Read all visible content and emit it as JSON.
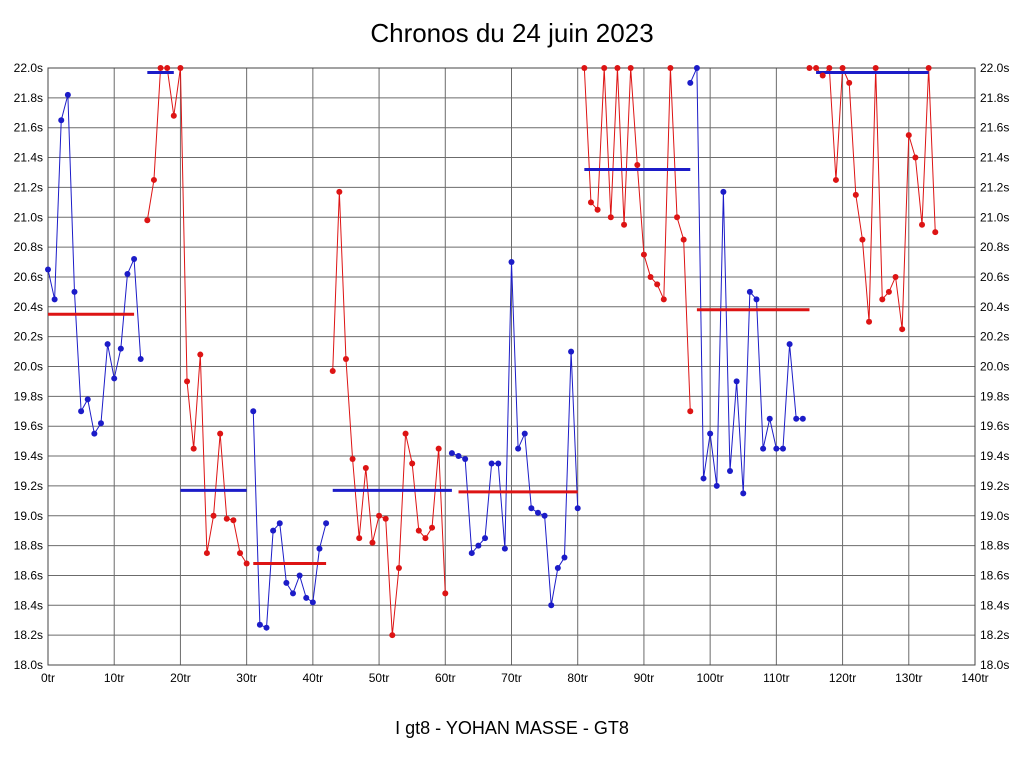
{
  "chart_data": {
    "type": "line",
    "title": "Chronos du 24 juin 2023",
    "subtitle": "I gt8 - YOHAN MASSE - GT8",
    "xlabel": "",
    "ylabel": "",
    "xlim": [
      0,
      140
    ],
    "ylim": [
      18.0,
      22.0
    ],
    "grid": true,
    "grid_color": "#6b6b6b",
    "border_color": "#444444",
    "x_ticks": [
      0,
      10,
      20,
      30,
      40,
      50,
      60,
      70,
      80,
      90,
      100,
      110,
      120,
      130,
      140
    ],
    "x_tick_labels": [
      "0tr",
      "10tr",
      "20tr",
      "30tr",
      "40tr",
      "50tr",
      "60tr",
      "70tr",
      "80tr",
      "90tr",
      "100tr",
      "110tr",
      "120tr",
      "130tr",
      "140tr"
    ],
    "y_ticks": [
      22.0,
      21.8,
      21.6,
      21.4,
      21.2,
      21.0,
      20.8,
      20.6,
      20.4,
      20.2,
      20.0,
      19.8,
      19.6,
      19.4,
      19.2,
      19.0,
      18.8,
      18.6,
      18.4,
      18.2,
      18.0
    ],
    "y_tick_labels": [
      "22.0s",
      "21.8s",
      "21.6s",
      "21.4s",
      "21.2s",
      "21.0s",
      "20.8s",
      "20.6s",
      "20.4s",
      "20.2s",
      "20.0s",
      "19.8s",
      "19.6s",
      "19.4s",
      "19.2s",
      "19.0s",
      "18.8s",
      "18.6s",
      "18.4s",
      "18.2s",
      "18.0s"
    ],
    "colors": {
      "blue": "#1c1cc8",
      "red": "#dd1414"
    },
    "series": [
      {
        "name": "driver-blue",
        "color_key": "blue",
        "segments": [
          [
            [
              0,
              20.65
            ],
            [
              1,
              20.45
            ],
            [
              2,
              21.65
            ],
            [
              3,
              21.82
            ],
            [
              4,
              20.5
            ],
            [
              5,
              19.7
            ],
            [
              6,
              19.78
            ],
            [
              7,
              19.55
            ],
            [
              8,
              19.62
            ],
            [
              9,
              20.15
            ],
            [
              10,
              19.92
            ],
            [
              11,
              20.12
            ],
            [
              12,
              20.62
            ],
            [
              13,
              20.72
            ],
            [
              14,
              20.05
            ]
          ],
          [
            [
              31,
              19.7
            ],
            [
              32,
              18.27
            ],
            [
              33,
              18.25
            ],
            [
              34,
              18.9
            ],
            [
              35,
              18.95
            ],
            [
              36,
              18.55
            ],
            [
              37,
              18.48
            ],
            [
              38,
              18.6
            ],
            [
              39,
              18.45
            ],
            [
              40,
              18.42
            ],
            [
              41,
              18.78
            ],
            [
              42,
              18.95
            ]
          ],
          [
            [
              61,
              19.42
            ],
            [
              62,
              19.4
            ],
            [
              63,
              19.38
            ],
            [
              64,
              18.75
            ],
            [
              65,
              18.8
            ],
            [
              66,
              18.85
            ],
            [
              67,
              19.35
            ],
            [
              68,
              19.35
            ],
            [
              69,
              18.78
            ],
            [
              70,
              20.7
            ],
            [
              71,
              19.45
            ],
            [
              72,
              19.55
            ],
            [
              73,
              19.05
            ],
            [
              74,
              19.02
            ],
            [
              75,
              19.0
            ],
            [
              76,
              18.4
            ],
            [
              77,
              18.65
            ],
            [
              78,
              18.72
            ],
            [
              79,
              20.1
            ],
            [
              80,
              19.05
            ]
          ],
          [
            [
              97,
              21.9
            ],
            [
              98,
              22.0
            ],
            [
              99,
              19.25
            ],
            [
              100,
              19.55
            ],
            [
              101,
              19.2
            ],
            [
              102,
              21.17
            ],
            [
              103,
              19.3
            ],
            [
              104,
              19.9
            ],
            [
              105,
              19.15
            ],
            [
              106,
              20.5
            ],
            [
              107,
              20.45
            ],
            [
              108,
              19.45
            ],
            [
              109,
              19.65
            ],
            [
              110,
              19.45
            ],
            [
              111,
              19.45
            ],
            [
              112,
              20.15
            ],
            [
              113,
              19.65
            ],
            [
              114,
              19.65
            ]
          ]
        ]
      },
      {
        "name": "driver-red",
        "color_key": "red",
        "segments": [
          [
            [
              15,
              20.98
            ],
            [
              16,
              21.25
            ],
            [
              17,
              22.0
            ],
            [
              18,
              22.0
            ],
            [
              19,
              21.68
            ],
            [
              20,
              22.0
            ],
            [
              21,
              19.9
            ],
            [
              22,
              19.45
            ],
            [
              23,
              20.08
            ],
            [
              24,
              18.75
            ],
            [
              25,
              19.0
            ],
            [
              26,
              19.55
            ],
            [
              27,
              18.98
            ],
            [
              28,
              18.97
            ],
            [
              29,
              18.75
            ],
            [
              30,
              18.68
            ]
          ],
          [
            [
              43,
              19.97
            ],
            [
              44,
              21.17
            ],
            [
              45,
              20.05
            ],
            [
              46,
              19.38
            ],
            [
              47,
              18.85
            ],
            [
              48,
              19.32
            ],
            [
              49,
              18.82
            ],
            [
              50,
              19.0
            ],
            [
              51,
              18.98
            ],
            [
              52,
              18.2
            ],
            [
              53,
              18.65
            ],
            [
              54,
              19.55
            ],
            [
              55,
              19.35
            ],
            [
              56,
              18.9
            ],
            [
              57,
              18.85
            ],
            [
              58,
              18.92
            ],
            [
              59,
              19.45
            ],
            [
              60,
              18.48
            ]
          ],
          [
            [
              81,
              22.0
            ],
            [
              82,
              21.1
            ],
            [
              83,
              21.05
            ],
            [
              84,
              22.0
            ],
            [
              85,
              21.0
            ],
            [
              86,
              22.0
            ],
            [
              87,
              20.95
            ],
            [
              88,
              22.0
            ],
            [
              89,
              21.35
            ],
            [
              90,
              20.75
            ],
            [
              91,
              20.6
            ],
            [
              92,
              20.55
            ],
            [
              93,
              20.45
            ],
            [
              94,
              22.0
            ],
            [
              95,
              21.0
            ],
            [
              96,
              20.85
            ],
            [
              97,
              19.7
            ]
          ],
          [
            [
              115,
              22.0
            ],
            [
              116,
              22.0
            ],
            [
              117,
              21.95
            ],
            [
              118,
              22.0
            ],
            [
              119,
              21.25
            ],
            [
              120,
              22.0
            ],
            [
              121,
              21.9
            ],
            [
              122,
              21.15
            ],
            [
              123,
              20.85
            ],
            [
              124,
              20.3
            ],
            [
              125,
              22.0
            ],
            [
              126,
              20.45
            ],
            [
              127,
              20.5
            ],
            [
              128,
              20.6
            ],
            [
              129,
              20.25
            ],
            [
              130,
              21.55
            ],
            [
              131,
              21.4
            ],
            [
              132,
              20.95
            ],
            [
              133,
              22.0
            ],
            [
              134,
              20.9
            ]
          ]
        ]
      }
    ],
    "stint_averages": [
      {
        "from_lap": 0,
        "to_lap": 13,
        "avg": 20.35,
        "color_key": "red"
      },
      {
        "from_lap": 15,
        "to_lap": 19,
        "avg": 21.97,
        "color_key": "blue"
      },
      {
        "from_lap": 20,
        "to_lap": 30,
        "avg": 19.17,
        "color_key": "blue"
      },
      {
        "from_lap": 31,
        "to_lap": 42,
        "avg": 18.68,
        "color_key": "red"
      },
      {
        "from_lap": 43,
        "to_lap": 61,
        "avg": 19.17,
        "color_key": "blue"
      },
      {
        "from_lap": 62,
        "to_lap": 80,
        "avg": 19.16,
        "color_key": "red"
      },
      {
        "from_lap": 81,
        "to_lap": 97,
        "avg": 21.32,
        "color_key": "blue"
      },
      {
        "from_lap": 98,
        "to_lap": 115,
        "avg": 20.38,
        "color_key": "red"
      },
      {
        "from_lap": 116,
        "to_lap": 133,
        "avg": 21.97,
        "color_key": "blue"
      }
    ]
  }
}
